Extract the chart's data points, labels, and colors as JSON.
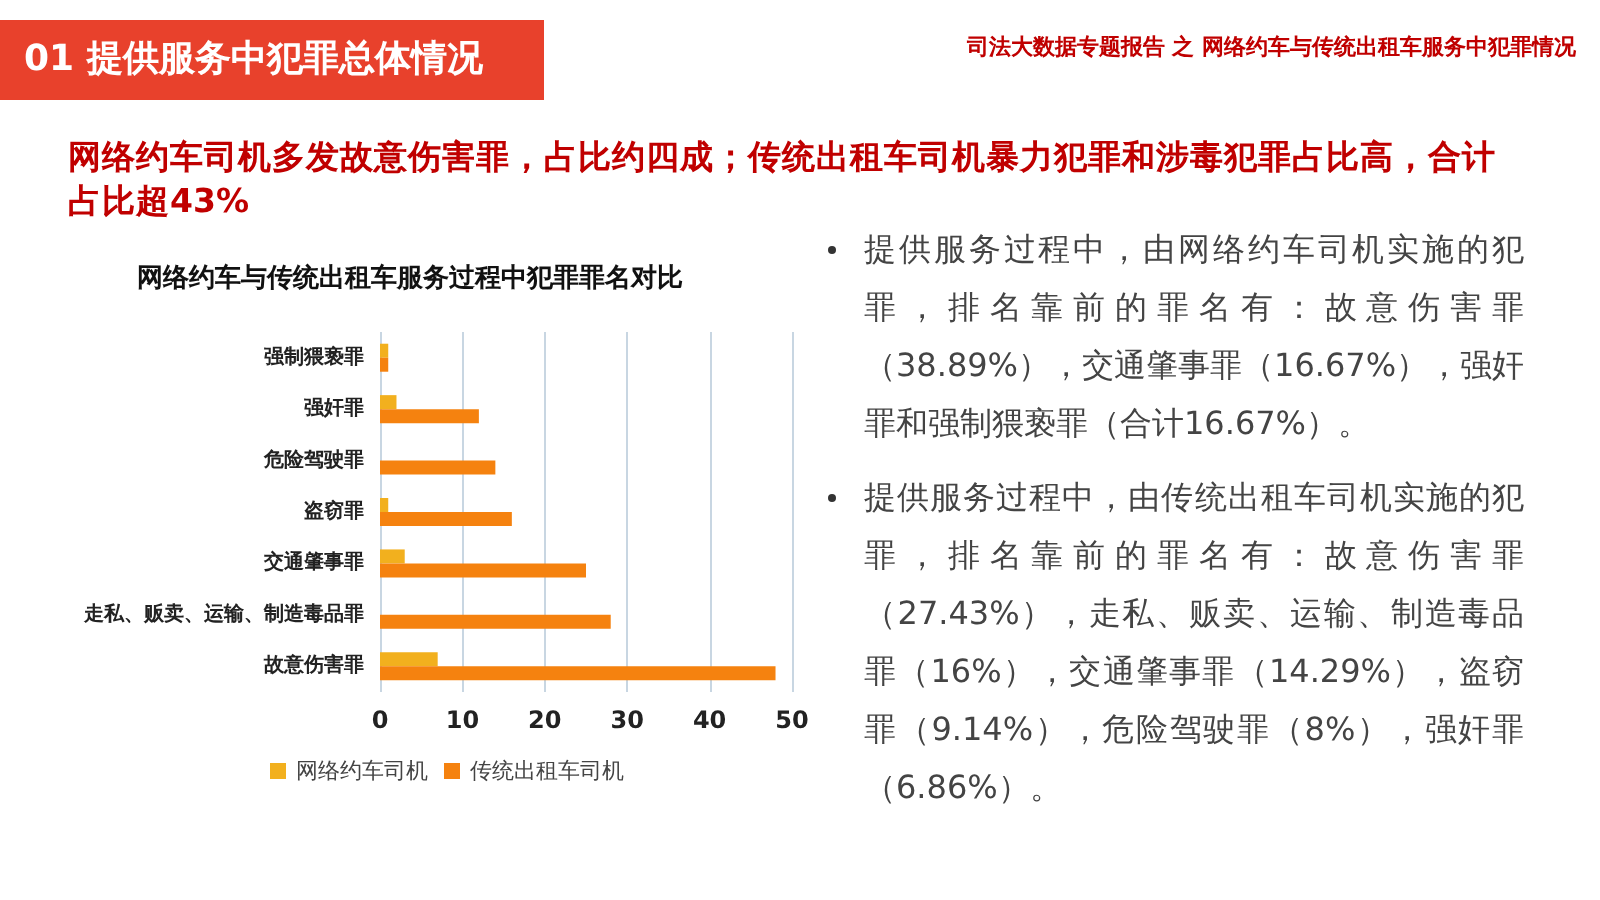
{
  "chart_data": {
    "type": "bar",
    "orientation": "horizontal",
    "title": "网络约车与传统出租车服务过程中犯罪罪名对比",
    "categories": [
      "强制猥亵罪",
      "强奸罪",
      "危险驾驶罪",
      "盗窃罪",
      "交通肇事罪",
      "走私、贩卖、运输、制造毒品罪",
      "故意伤害罪"
    ],
    "series": [
      {
        "name": "网络约车司机",
        "color": "#f2b01e",
        "values": [
          1,
          2,
          0,
          1,
          3,
          0,
          7
        ]
      },
      {
        "name": "传统出租车司机",
        "color": "#f5820f",
        "values": [
          1,
          12,
          14,
          16,
          25,
          28,
          48
        ]
      }
    ],
    "xlim": [
      0,
      50
    ],
    "xticks": [
      0,
      10,
      20,
      30,
      40,
      50
    ],
    "grid": "x",
    "legend": "bottom",
    "annotations": [
      "01 提供服务中犯罪总体情况",
      "司法大数据专题报告 之 网络约车与传统出租车服务中犯罪情况",
      "网络约车司机多发故意伤害罪，占比约四成；传统出租车司机暴力犯罪和涉毒犯罪占比高，合计占比超43%",
      "提供服务过程中，由网络约车司机实施的犯罪，排名靠前的罪名有：故意伤害罪（38.89%），交通肇事罪（16.67%），强奸罪和强制猥亵罪（合计16.67%）。",
      "提供服务过程中，由传统出租车司机实施的犯罪，排名靠前的罪名有：故意伤害罪（27.43%），走私、贩卖、运输、制造毒品罪（16%），交通肇事罪（14.29%），盗窃罪（9.14%），危险驾驶罪（8%），强奸罪（6.86%）。"
    ]
  }
}
